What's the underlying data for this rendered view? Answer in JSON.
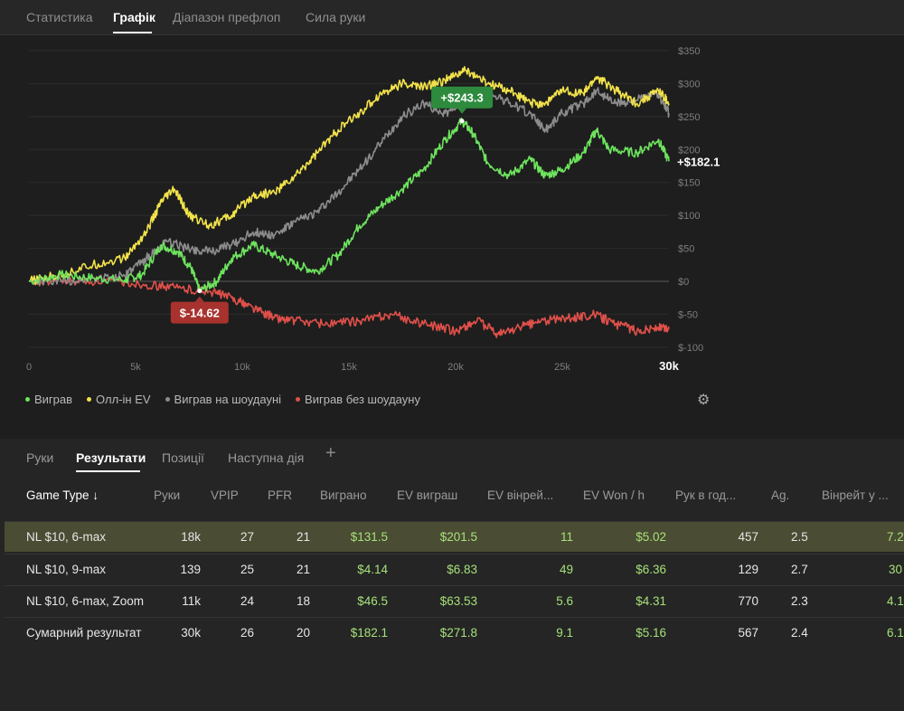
{
  "top_tabs": [
    {
      "label": "Статистика",
      "active": false
    },
    {
      "label": "Графік",
      "active": true
    },
    {
      "label": "Діапазон префлоп",
      "active": false
    },
    {
      "label": "Сила руки",
      "active": false
    }
  ],
  "chart_data": {
    "type": "line",
    "x_ticks": [
      "0",
      "5k",
      "10k",
      "15k",
      "20k",
      "25k",
      "30k"
    ],
    "y_ticks": [
      "$350",
      "$300",
      "$250",
      "$200",
      "$150",
      "$100",
      "$50",
      "$0",
      "$-50",
      "$-100"
    ],
    "xlim": [
      0,
      30000
    ],
    "ylim": [
      -100,
      350
    ],
    "series": [
      {
        "name": "Виграв",
        "color": "#6ee35e",
        "points": [
          [
            0,
            0
          ],
          [
            1500,
            10
          ],
          [
            3000,
            5
          ],
          [
            4500,
            2
          ],
          [
            5300,
            10
          ],
          [
            6200,
            55
          ],
          [
            7000,
            45
          ],
          [
            7600,
            20
          ],
          [
            8000,
            -14.62
          ],
          [
            8800,
            0
          ],
          [
            9500,
            35
          ],
          [
            10500,
            55
          ],
          [
            11500,
            40
          ],
          [
            12500,
            25
          ],
          [
            13500,
            15
          ],
          [
            14500,
            40
          ],
          [
            15500,
            85
          ],
          [
            16500,
            115
          ],
          [
            17500,
            140
          ],
          [
            18500,
            170
          ],
          [
            19500,
            215
          ],
          [
            20300,
            243.3
          ],
          [
            20800,
            225
          ],
          [
            21500,
            180
          ],
          [
            22500,
            160
          ],
          [
            23500,
            185
          ],
          [
            24200,
            160
          ],
          [
            25000,
            170
          ],
          [
            26000,
            195
          ],
          [
            26600,
            230
          ],
          [
            27200,
            200
          ],
          [
            28500,
            195
          ],
          [
            29500,
            215
          ],
          [
            30000,
            182.1
          ]
        ]
      },
      {
        "name": "Олл-ін EV",
        "color": "#f2e24a",
        "points": [
          [
            0,
            0
          ],
          [
            1500,
            10
          ],
          [
            3000,
            25
          ],
          [
            4500,
            35
          ],
          [
            5500,
            75
          ],
          [
            6200,
            120
          ],
          [
            6800,
            140
          ],
          [
            7500,
            100
          ],
          [
            8500,
            85
          ],
          [
            9500,
            100
          ],
          [
            10500,
            130
          ],
          [
            11500,
            135
          ],
          [
            12500,
            160
          ],
          [
            13500,
            195
          ],
          [
            14500,
            230
          ],
          [
            15500,
            255
          ],
          [
            16500,
            285
          ],
          [
            17500,
            300
          ],
          [
            18500,
            295
          ],
          [
            19500,
            305
          ],
          [
            20500,
            320
          ],
          [
            21500,
            300
          ],
          [
            22500,
            290
          ],
          [
            23500,
            270
          ],
          [
            24200,
            270
          ],
          [
            25000,
            290
          ],
          [
            26000,
            285
          ],
          [
            26600,
            310
          ],
          [
            27500,
            290
          ],
          [
            28500,
            270
          ],
          [
            29500,
            290
          ],
          [
            30000,
            270
          ]
        ]
      },
      {
        "name": "Виграв на шоудауні",
        "color": "#8c8c8c",
        "points": [
          [
            0,
            0
          ],
          [
            1500,
            0
          ],
          [
            3000,
            5
          ],
          [
            4500,
            8
          ],
          [
            5500,
            35
          ],
          [
            6500,
            60
          ],
          [
            7500,
            50
          ],
          [
            8500,
            45
          ],
          [
            9500,
            55
          ],
          [
            10500,
            75
          ],
          [
            11500,
            70
          ],
          [
            12500,
            90
          ],
          [
            13500,
            105
          ],
          [
            14500,
            135
          ],
          [
            15500,
            170
          ],
          [
            16500,
            210
          ],
          [
            17500,
            250
          ],
          [
            18500,
            270
          ],
          [
            19500,
            255
          ],
          [
            20500,
            275
          ],
          [
            21500,
            290
          ],
          [
            22500,
            270
          ],
          [
            23500,
            255
          ],
          [
            24200,
            230
          ],
          [
            25000,
            255
          ],
          [
            26000,
            270
          ],
          [
            26600,
            290
          ],
          [
            27500,
            270
          ],
          [
            28500,
            275
          ],
          [
            29500,
            285
          ],
          [
            30000,
            255
          ]
        ]
      },
      {
        "name": "Виграв без шоудауну",
        "color": "#e0504a",
        "points": [
          [
            0,
            0
          ],
          [
            2000,
            0
          ],
          [
            4000,
            0
          ],
          [
            5500,
            -5
          ],
          [
            7000,
            -10
          ],
          [
            8500,
            -15
          ],
          [
            9500,
            -25
          ],
          [
            10500,
            -40
          ],
          [
            11500,
            -55
          ],
          [
            12500,
            -60
          ],
          [
            14000,
            -65
          ],
          [
            15500,
            -60
          ],
          [
            17000,
            -50
          ],
          [
            18500,
            -65
          ],
          [
            20000,
            -75
          ],
          [
            21000,
            -60
          ],
          [
            22000,
            -80
          ],
          [
            23000,
            -70
          ],
          [
            24000,
            -60
          ],
          [
            25500,
            -55
          ],
          [
            26500,
            -50
          ],
          [
            27500,
            -65
          ],
          [
            28500,
            -75
          ],
          [
            29500,
            -70
          ],
          [
            30000,
            -72
          ]
        ]
      }
    ],
    "annotations": {
      "max_label": "+$243.3",
      "min_label": "$-14.62",
      "end_label": "+$182.1",
      "max_point": [
        20300,
        243.3
      ],
      "min_point": [
        8000,
        -14.62
      ],
      "end_point": [
        30000,
        182.1
      ]
    }
  },
  "legend": [
    {
      "label": "Виграв",
      "color": "#6ee35e"
    },
    {
      "label": "Олл-ін EV",
      "color": "#f2e24a"
    },
    {
      "label": "Виграв на шоудауні",
      "color": "#8c8c8c"
    },
    {
      "label": "Виграв без шоудауну",
      "color": "#e0504a"
    }
  ],
  "sub_tabs": [
    {
      "label": "Руки",
      "active": false
    },
    {
      "label": "Результати",
      "active": true
    },
    {
      "label": "Позиції",
      "active": false
    },
    {
      "label": "Наступна дія",
      "active": false
    }
  ],
  "add_tab_icon": "plus-icon",
  "table": {
    "headers": [
      "Game Type ↓",
      "Руки",
      "VPIP",
      "PFR",
      "Виграно",
      "EV виграш",
      "EV вінрей...",
      "EV Won / h",
      "Рук в год...",
      "Ag.",
      "Вінрейт у ..."
    ],
    "rows": [
      [
        "NL $10, 6-max",
        "18k",
        "27",
        "21",
        "$131.5",
        "$201.5",
        "11",
        "$5.02",
        "457",
        "2.5",
        "7.2"
      ],
      [
        "NL $10, 9-max",
        "139",
        "25",
        "21",
        "$4.14",
        "$6.83",
        "49",
        "$6.36",
        "129",
        "2.7",
        "30"
      ],
      [
        "NL $10, 6-max, Zoom",
        "11k",
        "24",
        "18",
        "$46.5",
        "$63.53",
        "5.6",
        "$4.31",
        "770",
        "2.3",
        "4.1"
      ],
      [
        "Сумарний результат",
        "30k",
        "26",
        "20",
        "$182.1",
        "$271.8",
        "9.1",
        "$5.16",
        "567",
        "2.4",
        "6.1"
      ]
    ],
    "selected_row": 0
  },
  "colors": {
    "positive": "#a7e07a",
    "selected_row": "#4a4c33",
    "max_badge": "#2e8b3e",
    "min_badge": "#a8322d"
  }
}
